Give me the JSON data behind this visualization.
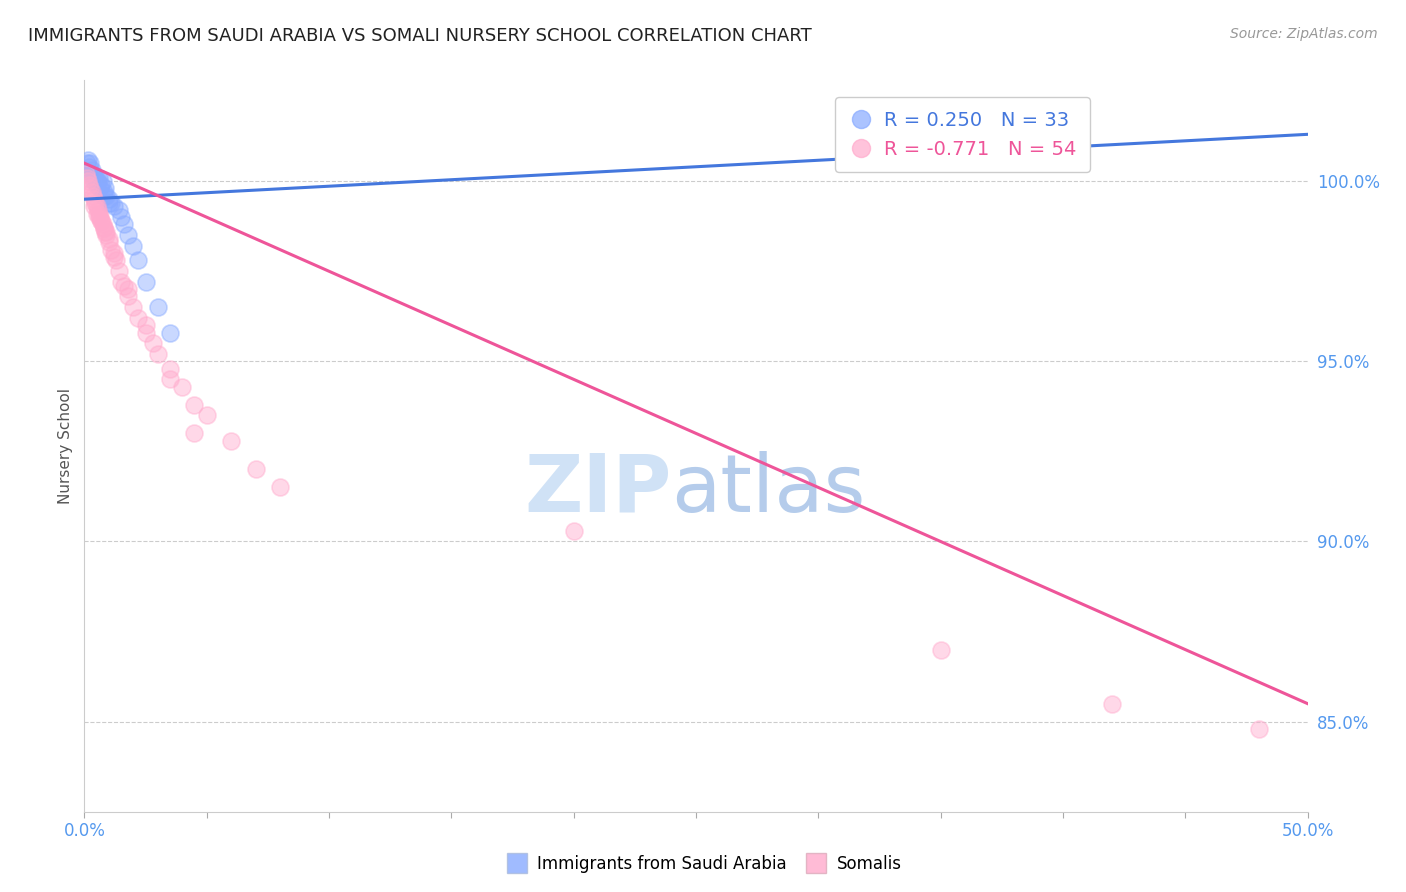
{
  "title": "IMMIGRANTS FROM SAUDI ARABIA VS SOMALI NURSERY SCHOOL CORRELATION CHART",
  "source": "Source: ZipAtlas.com",
  "ylabel": "Nursery School",
  "legend_blue_label": "R = 0.250   N = 33",
  "legend_pink_label": "R = -0.771   N = 54",
  "legend_label_blue": "Immigrants from Saudi Arabia",
  "legend_label_pink": "Somalis",
  "right_yticks": [
    85.0,
    90.0,
    95.0,
    100.0
  ],
  "right_ylabels": [
    "85.0%",
    "90.0%",
    "95.0%",
    "100.0%"
  ],
  "xmin": 0.0,
  "xmax": 50.0,
  "ymin": 82.5,
  "ymax": 102.8,
  "blue_color": "#88aaff",
  "pink_color": "#ffaacc",
  "blue_line_color": "#4477dd",
  "pink_line_color": "#ee5599",
  "blue_scatter_x": [
    0.1,
    0.15,
    0.2,
    0.25,
    0.3,
    0.35,
    0.4,
    0.45,
    0.5,
    0.55,
    0.6,
    0.65,
    0.7,
    0.75,
    0.8,
    0.85,
    0.9,
    1.0,
    1.1,
    1.2,
    1.4,
    1.6,
    1.8,
    2.0,
    2.2,
    2.5,
    3.0,
    3.5,
    0.3,
    0.5,
    0.8,
    1.0,
    1.5
  ],
  "blue_scatter_y": [
    100.5,
    100.6,
    100.4,
    100.5,
    100.3,
    100.2,
    100.0,
    100.1,
    99.9,
    100.0,
    100.1,
    99.8,
    99.9,
    100.0,
    99.7,
    99.8,
    99.6,
    99.5,
    99.4,
    99.3,
    99.2,
    98.8,
    98.5,
    98.2,
    97.8,
    97.2,
    96.5,
    95.8,
    100.2,
    100.0,
    99.6,
    99.4,
    99.0
  ],
  "pink_scatter_x": [
    0.05,
    0.1,
    0.15,
    0.2,
    0.25,
    0.3,
    0.35,
    0.4,
    0.45,
    0.5,
    0.55,
    0.6,
    0.65,
    0.7,
    0.75,
    0.8,
    0.85,
    0.9,
    1.0,
    1.1,
    1.2,
    1.4,
    1.6,
    1.8,
    2.0,
    2.2,
    2.5,
    3.0,
    3.5,
    4.0,
    4.5,
    5.0,
    6.0,
    7.0,
    8.0,
    1.3,
    1.5,
    2.8,
    0.6,
    0.8,
    1.0,
    1.2,
    1.8,
    2.5,
    3.5,
    0.4,
    0.7,
    0.5,
    0.9,
    4.5,
    20.0,
    42.0,
    48.0,
    35.0
  ],
  "pink_scatter_y": [
    100.2,
    100.1,
    100.0,
    99.9,
    99.8,
    99.7,
    99.6,
    99.5,
    99.4,
    99.3,
    99.2,
    99.1,
    99.0,
    98.9,
    98.8,
    98.7,
    98.6,
    98.5,
    98.3,
    98.1,
    97.9,
    97.5,
    97.1,
    96.8,
    96.5,
    96.2,
    95.8,
    95.2,
    94.8,
    94.3,
    93.8,
    93.5,
    92.8,
    92.0,
    91.5,
    97.8,
    97.2,
    95.5,
    99.0,
    98.7,
    98.4,
    98.0,
    97.0,
    96.0,
    94.5,
    99.3,
    98.9,
    99.1,
    98.6,
    93.0,
    90.3,
    85.5,
    84.8,
    87.0
  ],
  "blue_trendline_x": [
    0.0,
    50.0
  ],
  "blue_trendline_y": [
    99.5,
    101.3
  ],
  "pink_trendline_x": [
    0.0,
    50.0
  ],
  "pink_trendline_y": [
    100.5,
    85.5
  ],
  "grid_yticks": [
    85.0,
    90.0,
    95.0,
    100.0
  ],
  "xtick_positions": [
    0,
    5,
    10,
    15,
    20,
    25,
    30,
    35,
    40,
    45,
    50
  ],
  "title_fontsize": 13,
  "tick_color": "#5599ee",
  "legend_text_blue": "R = 0.250",
  "legend_n_blue": "N = 33",
  "legend_text_pink": "R = -0.771",
  "legend_n_pink": "N = 54"
}
